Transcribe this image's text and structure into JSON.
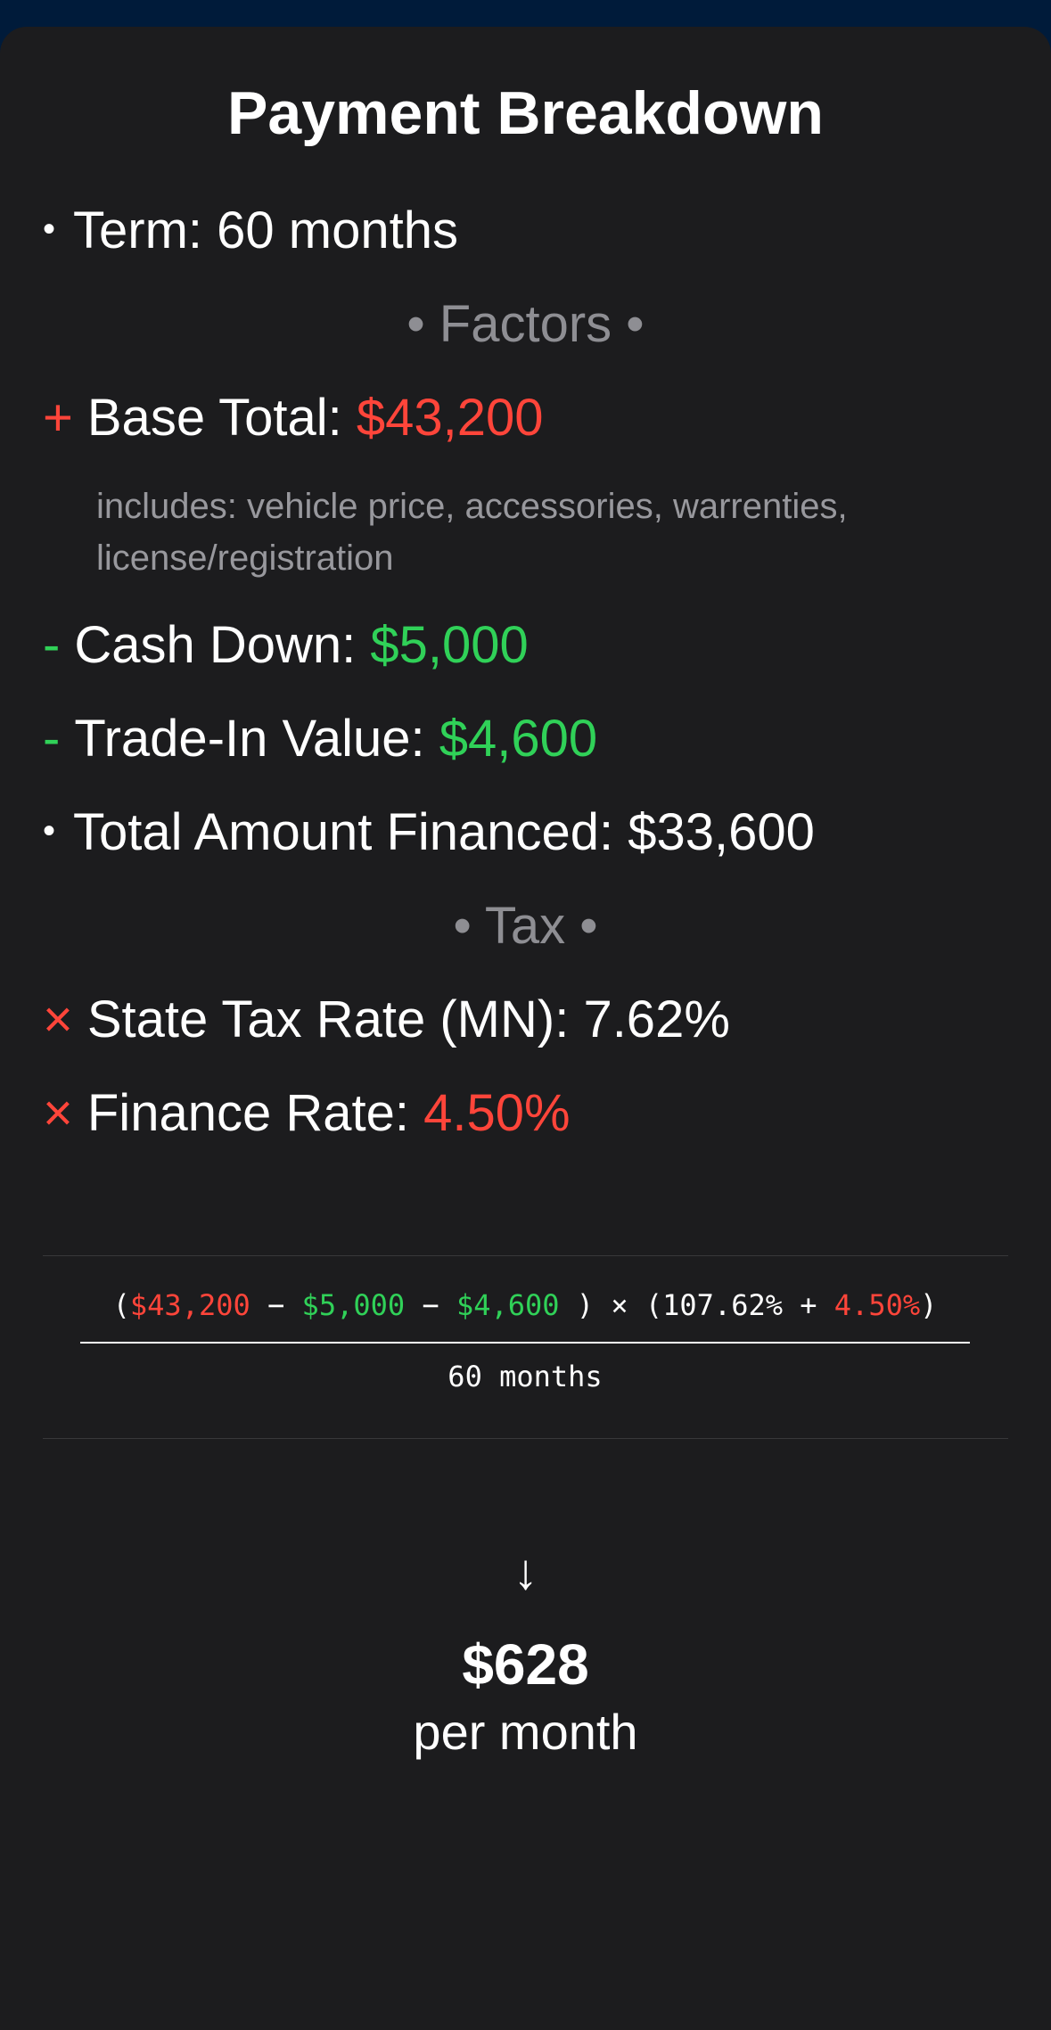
{
  "title": "Payment Breakdown",
  "term": {
    "marker": "•",
    "label": "Term:",
    "value": "60 months"
  },
  "sections": {
    "factors": "• Factors •",
    "tax": "• Tax •"
  },
  "factors": {
    "base_total": {
      "marker": "+",
      "label": "Base Total:",
      "value": "$43,200",
      "note": "includes: vehicle price, accessories, warrenties, license/registration"
    },
    "cash_down": {
      "marker": "-",
      "label": "Cash Down:",
      "value": "$5,000"
    },
    "trade_in": {
      "marker": "-",
      "label": "Trade-In Value:",
      "value": "$4,600"
    },
    "total_financed": {
      "marker": "•",
      "label": "Total Amount Financed:",
      "value": "$33,600"
    }
  },
  "tax": {
    "state_rate": {
      "marker": "×",
      "label": "State Tax Rate (MN):",
      "value": "7.62%"
    },
    "finance_rate": {
      "marker": "×",
      "label": "Finance Rate:",
      "value": "4.50%"
    }
  },
  "formula": {
    "open": "(",
    "base": "$43,200",
    "op1": " − ",
    "cash": "$5,000",
    "op2": " − ",
    "trade": "$4,600",
    "mid": " ) × (107.62% + ",
    "rate": "4.50%",
    "close": ")",
    "denominator": "60 months"
  },
  "result": {
    "arrow": "↓",
    "amount": "$628",
    "period": "per month"
  },
  "colors": {
    "increase": "#ff453a",
    "decrease": "#30d158",
    "muted": "#8e8e93",
    "background": "#1c1c1e",
    "header_bg": "#001b3a"
  }
}
